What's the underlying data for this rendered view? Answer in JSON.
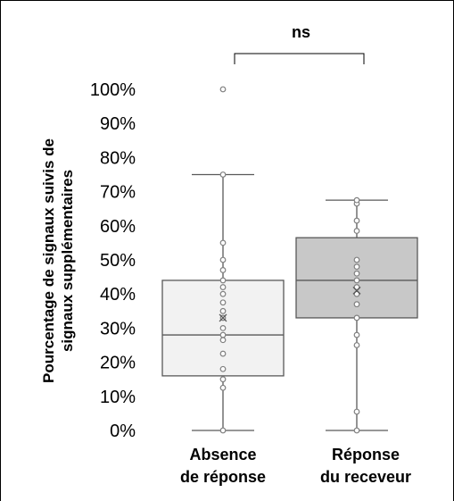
{
  "chart_data": {
    "type": "box",
    "ylabel_lines": [
      "Pourcentage de signaux suivis de",
      "signaux supplémentaires"
    ],
    "ylim": [
      0,
      100
    ],
    "yticks": [
      "0%",
      "10%",
      "20%",
      "30%",
      "40%",
      "50%",
      "60%",
      "70%",
      "80%",
      "90%",
      "100%"
    ],
    "tick_values": [
      0,
      10,
      20,
      30,
      40,
      50,
      60,
      70,
      80,
      90,
      100
    ],
    "significance": "ns",
    "groups": [
      {
        "label_lines": [
          "Absence",
          "de réponse"
        ],
        "fill": "#f2f2f2",
        "whisker_low": 0,
        "q1": 16,
        "median": 28,
        "q3": 44,
        "whisker_high": 75,
        "mean": 33,
        "outliers": [
          100
        ],
        "points": [
          0,
          12.5,
          15,
          18,
          22.5,
          26.5,
          28,
          30,
          33,
          35,
          37.5,
          40,
          42,
          44,
          47,
          50,
          55,
          75,
          100
        ]
      },
      {
        "label_lines": [
          "Réponse",
          "du receveur"
        ],
        "fill": "#c8c8c8",
        "whisker_low": 0,
        "q1": 33,
        "median": 44,
        "q3": 56.5,
        "whisker_high": 67.5,
        "mean": 41,
        "outliers": [],
        "points": [
          0,
          5.5,
          25,
          28,
          33,
          37,
          40,
          42,
          44,
          46,
          48,
          50,
          58.5,
          61.5,
          66.5,
          67.5
        ]
      }
    ]
  }
}
